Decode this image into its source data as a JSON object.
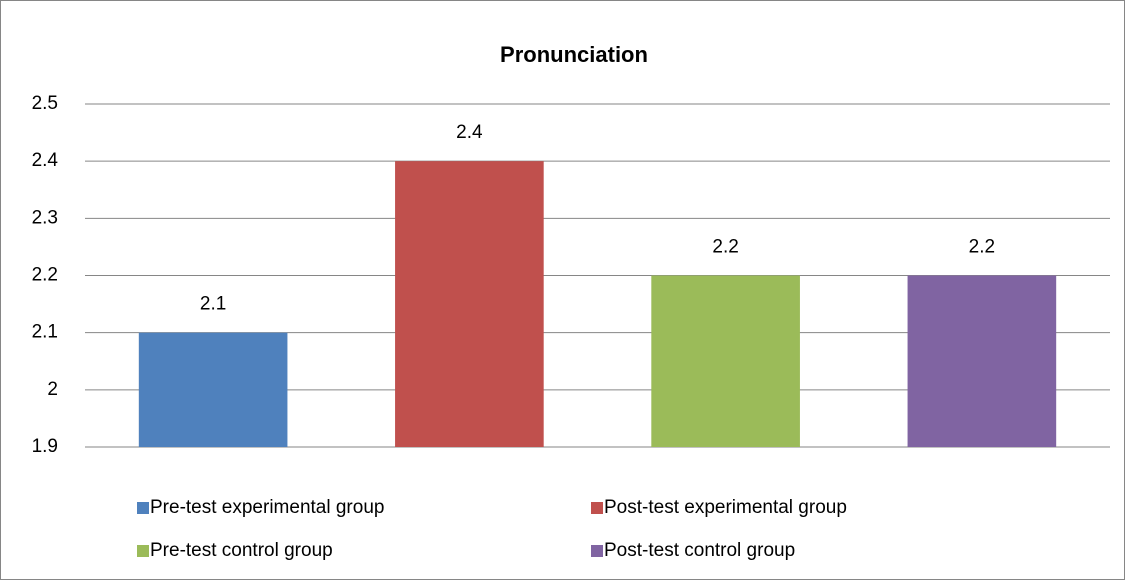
{
  "chart_data": {
    "type": "bar",
    "title": "Pronunciation",
    "series": [
      {
        "name": "Pre-test experimental group",
        "color": "#4f81bd",
        "values": [
          2.1
        ]
      },
      {
        "name": "Post-test experimental group",
        "color": "#c0504d",
        "values": [
          2.4
        ]
      },
      {
        "name": "Pre-test control group",
        "color": "#9bbb59",
        "values": [
          2.2
        ]
      },
      {
        "name": "Post-test control group",
        "color": "#8064a2",
        "values": [
          2.2
        ]
      }
    ],
    "ylim": [
      1.9,
      2.5
    ],
    "yticks": [
      1.9,
      2,
      2.1,
      2.2,
      2.3,
      2.4,
      2.5
    ],
    "grid": true,
    "legend": "bottom"
  }
}
